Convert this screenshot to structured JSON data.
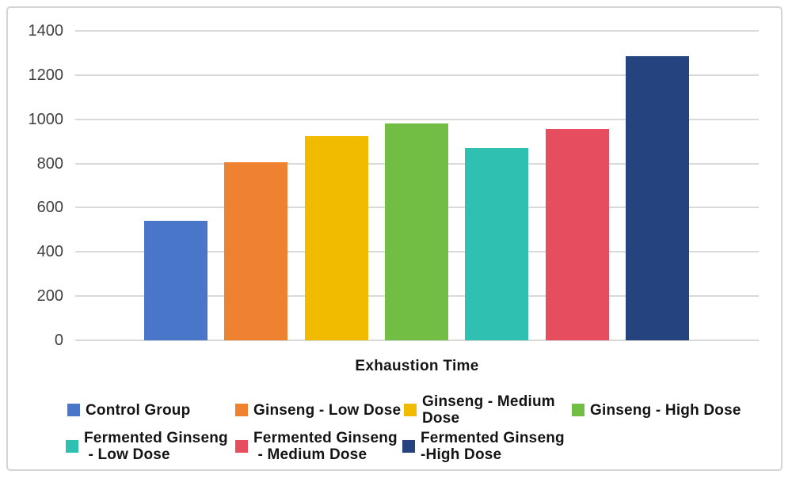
{
  "chart_data": {
    "type": "bar",
    "title": "",
    "xlabel": "Exhaustion Time",
    "ylabel": "",
    "ylim": [
      0,
      1400
    ],
    "ytick_interval": 200,
    "yticks": [
      1400,
      1200,
      1000,
      800,
      600,
      400,
      200,
      0
    ],
    "grid": true,
    "legend_position": "bottom",
    "categories": [
      "Control Group",
      "Ginseng - Low Dose",
      "Ginseng - Medium Dose",
      "Ginseng - High Dose",
      "Fermented Ginseng - Low Dose",
      "Fermented Ginseng - Medium Dose",
      "Fermented Ginseng - High Dose"
    ],
    "values": [
      540,
      805,
      925,
      980,
      870,
      955,
      1285
    ],
    "colors": [
      "#4a76c9",
      "#ee8230",
      "#f1bc00",
      "#72bd44",
      "#2fc0b2",
      "#e64d5f",
      "#24437f"
    ],
    "legend_labels": [
      "Control Group",
      "Ginseng - Low Dose",
      "Ginseng - Medium\nDose",
      "Ginseng - High Dose",
      "Fermented Ginseng\n - Low Dose",
      "Fermented Ginseng\n - Medium Dose",
      "Fermented Ginseng\n-High Dose"
    ]
  },
  "colors": {
    "background": "#ffffff",
    "border": "#d4d4d4",
    "gridline": "#d9d9d9",
    "tick_label": "#3f3f3f",
    "text": "#141414"
  }
}
